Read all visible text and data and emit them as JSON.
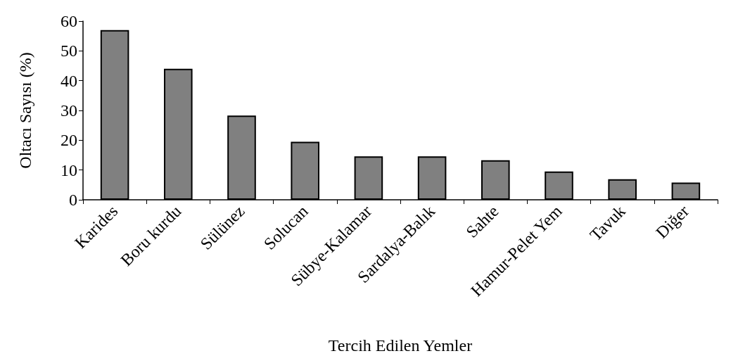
{
  "chart_data": {
    "type": "bar",
    "xlabel": "Tercih Edilen Yemler",
    "ylabel": "Oltacı Sayısı (%)",
    "categories": [
      "Karides",
      "Boru kurdu",
      "Sülünez",
      "Solucan",
      "Sübye-Kalamar",
      "Sardalya-Balık",
      "Sahte",
      "Hamur-Pelet Yem",
      "Tavuk",
      "Diğer"
    ],
    "values": [
      57,
      44,
      28.3,
      19.5,
      14.6,
      14.6,
      13.3,
      9.5,
      6.9,
      5.8
    ],
    "color": "#808080",
    "ylim": [
      0,
      60
    ],
    "yticks": [
      0,
      10,
      20,
      30,
      40,
      50,
      60
    ],
    "grid": false
  }
}
